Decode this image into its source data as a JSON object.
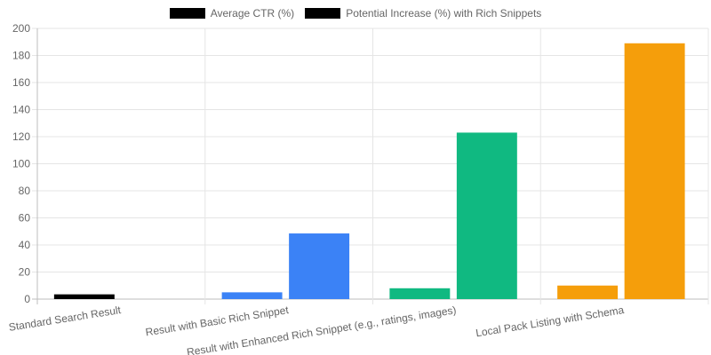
{
  "chart_data": {
    "type": "bar",
    "categories": [
      "Standard Search Result",
      "Result with Basic Rich Snippet",
      "Result with Enhanced Rich Snippet (e.g., ratings, images)",
      "Local Pack Listing with Schema"
    ],
    "series": [
      {
        "name": "Average CTR (%)",
        "values": [
          3.5,
          5,
          8,
          10
        ]
      },
      {
        "name": "Potential Increase (%) with Rich Snippets",
        "values": [
          0,
          48.5,
          123,
          189
        ]
      }
    ],
    "bar_colors": [
      "#000000",
      "#3b82f6",
      "#10b981",
      "#f59e0b"
    ],
    "legend_colors": [
      "#000000",
      "#000000"
    ],
    "legend_position": "top",
    "ylim": [
      0,
      200
    ],
    "yticks": [
      0,
      20,
      40,
      60,
      80,
      100,
      120,
      140,
      160,
      180,
      200
    ],
    "grid": true
  }
}
